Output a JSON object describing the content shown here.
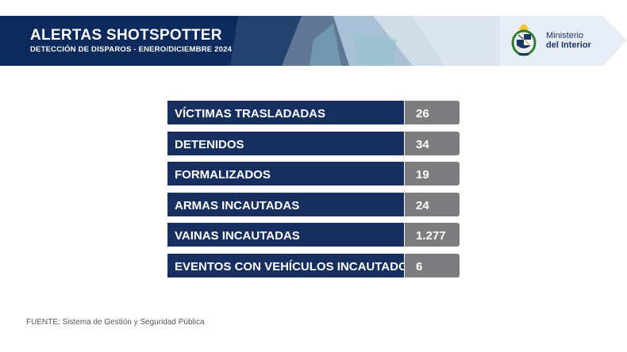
{
  "header": {
    "title": "ALERTAS SHOTSPOTTER",
    "subtitle": "DETECCIÓN DE DISPAROS - ENERO/DICIEMBRE 2024",
    "ministry_line1": "Ministerio",
    "ministry_line2": "del Interior"
  },
  "stats": [
    {
      "label": "VÍCTIMAS TRASLADADAS",
      "value": "26"
    },
    {
      "label": "DETENIDOS",
      "value": "34"
    },
    {
      "label": "FORMALIZADOS",
      "value": "19"
    },
    {
      "label": "ARMAS INCAUTADAS",
      "value": "24"
    },
    {
      "label": "VAINAS INCAUTADAS",
      "value": "1.277"
    },
    {
      "label": "EVENTOS CON VEHÍCULOS INCAUTADOS",
      "value": "6"
    }
  ],
  "footer": {
    "source": "FUENTE: Sistema de Gestión y Seguridad Pública"
  },
  "colors": {
    "navy": "#172f5e",
    "value_gray": "#7d7d7f",
    "banner_light": "#e8eef6"
  }
}
